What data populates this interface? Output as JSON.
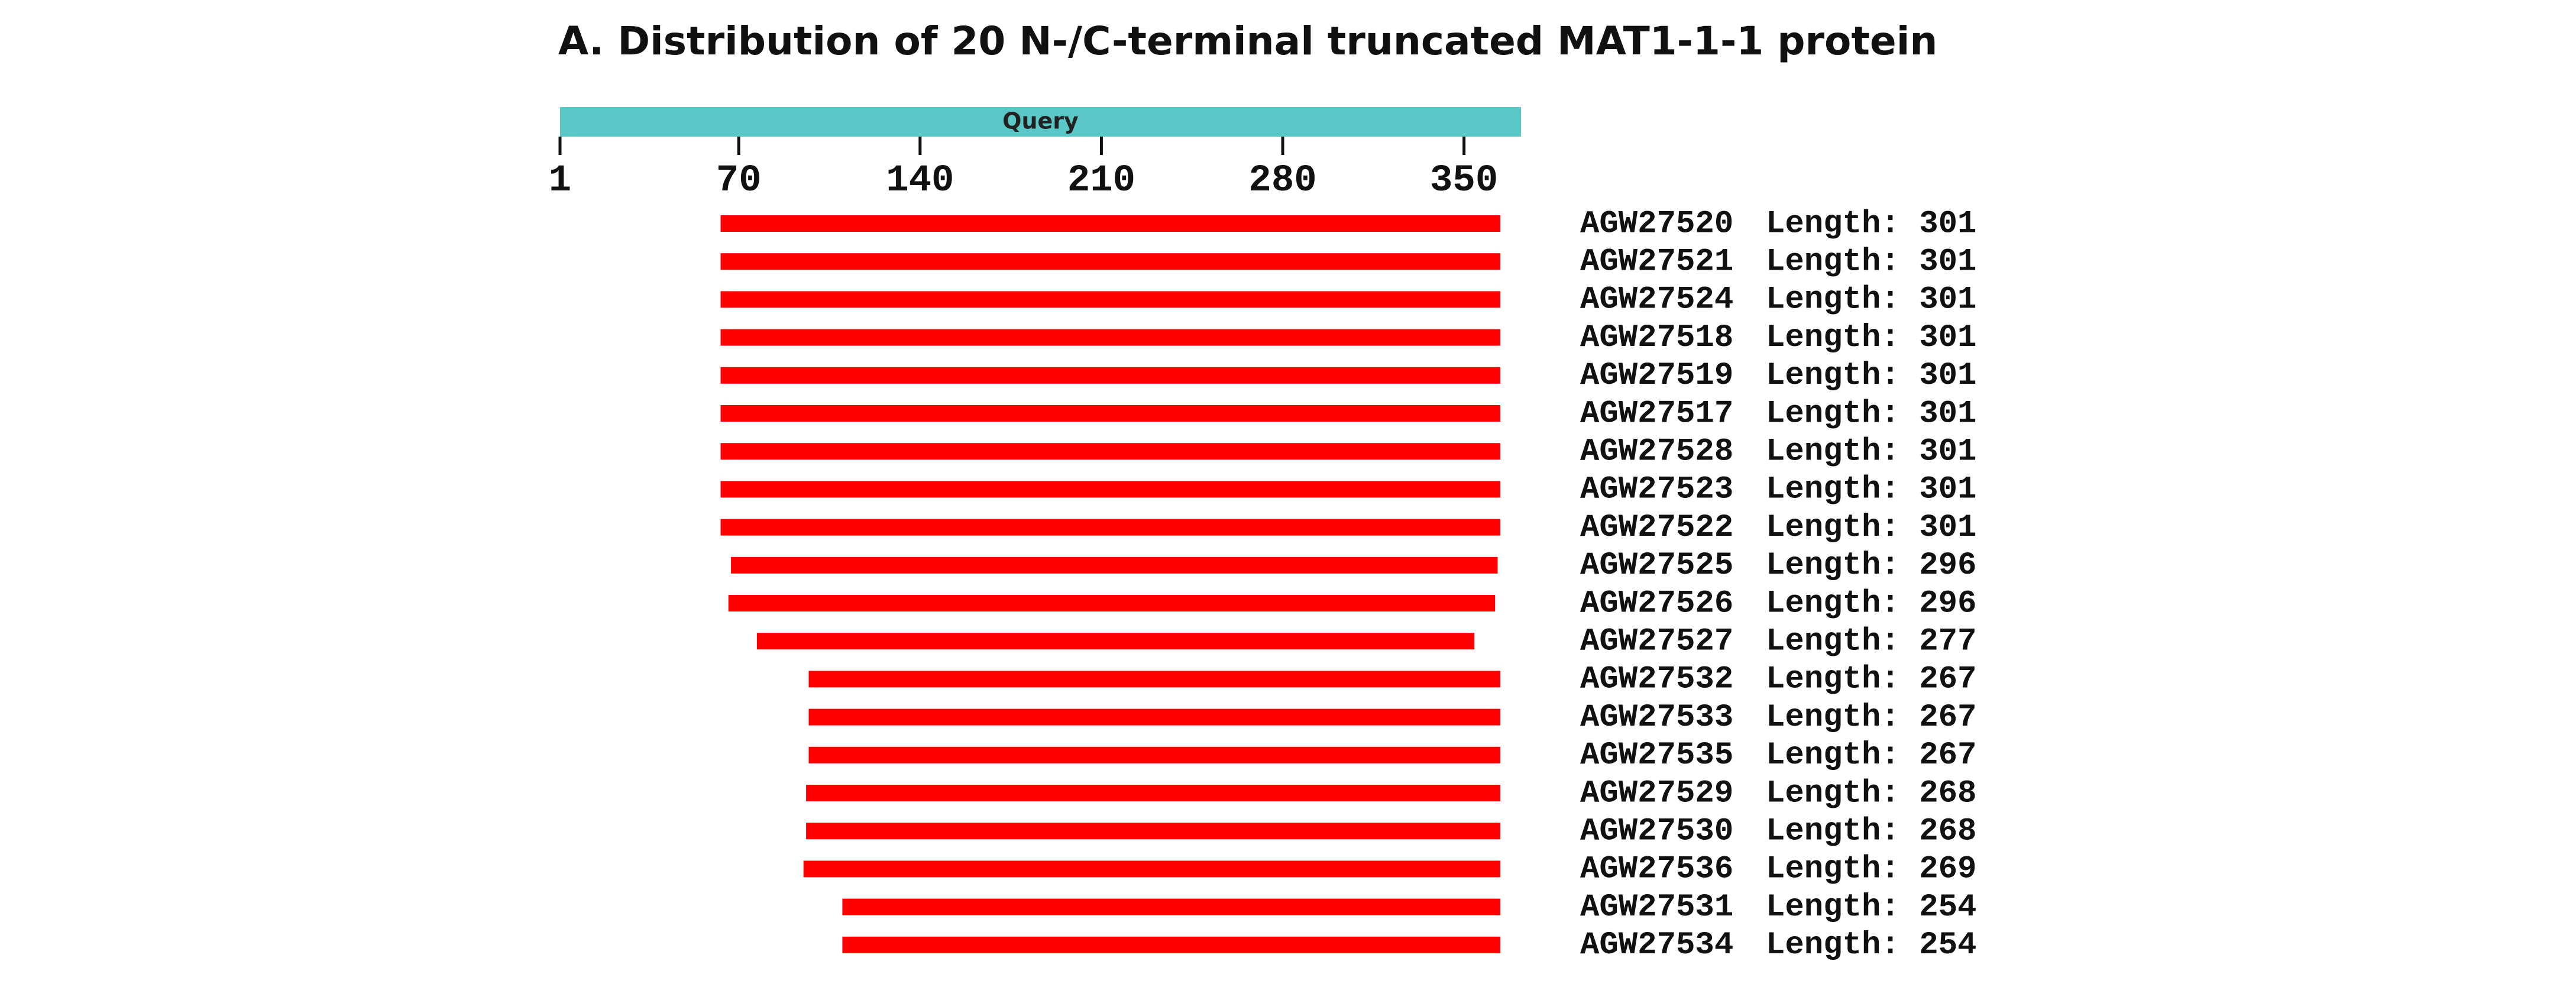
{
  "chart_data": {
    "type": "range",
    "title": "A. Distribution of 20 N-/C-terminal truncated MAT1-1-1 protein",
    "query_label": "Query",
    "query_color": "#5bc8c8",
    "color": "#ff0000",
    "xlim": [
      1,
      372
    ],
    "xticks": [
      1,
      70,
      140,
      210,
      280,
      350
    ],
    "categories": [
      "AGW27520",
      "AGW27521",
      "AGW27524",
      "AGW27518",
      "AGW27519",
      "AGW27517",
      "AGW27528",
      "AGW27523",
      "AGW27522",
      "AGW27525",
      "AGW27526",
      "AGW27527",
      "AGW27532",
      "AGW27533",
      "AGW27535",
      "AGW27529",
      "AGW27530",
      "AGW27536",
      "AGW27531",
      "AGW27534"
    ],
    "starts": [
      63,
      63,
      63,
      63,
      63,
      63,
      63,
      63,
      63,
      67,
      66,
      77,
      97,
      97,
      97,
      96,
      96,
      95,
      110,
      110
    ],
    "values": [
      301,
      301,
      301,
      301,
      301,
      301,
      301,
      301,
      301,
      296,
      296,
      277,
      267,
      267,
      267,
      268,
      268,
      269,
      254,
      254
    ],
    "value_labels": [
      "Length: 301",
      "Length: 301",
      "Length: 301",
      "Length: 301",
      "Length: 301",
      "Length: 301",
      "Length: 301",
      "Length: 301",
      "Length: 301",
      "Length: 296",
      "Length: 296",
      "Length: 277",
      "Length: 267",
      "Length: 267",
      "Length: 267",
      "Length: 268",
      "Length: 268",
      "Length: 269",
      "Length: 254",
      "Length: 254"
    ]
  }
}
